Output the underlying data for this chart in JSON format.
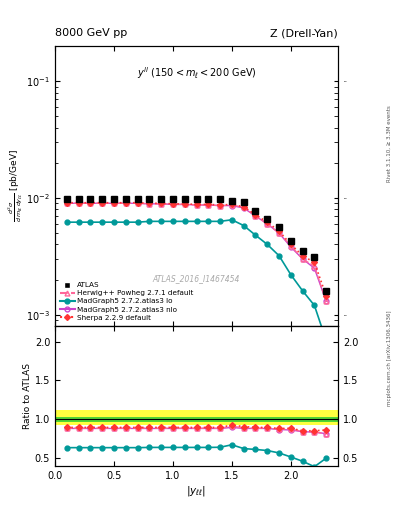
{
  "title_left": "8000 GeV pp",
  "title_right": "Z (Drell-Yan)",
  "annotation": "y^{ll} (150 < m_{l} < 200 GeV)",
  "watermark": "ATLAS_2016_I1467454",
  "rivet_label": "Rivet 3.1.10, ≥ 3.3M events",
  "mcplots_label": "mcplots.cern.ch [arXiv:1306.3436]",
  "ylabel_ratio": "Ratio to ATLAS",
  "xlabel": "|y_{\\ell\\ell}|",
  "xlim": [
    0.0,
    2.4
  ],
  "ylim_main": [
    0.0008,
    0.2
  ],
  "ylim_ratio": [
    0.4,
    2.2
  ],
  "x_atlas": [
    0.1,
    0.2,
    0.3,
    0.4,
    0.5,
    0.6,
    0.7,
    0.8,
    0.9,
    1.0,
    1.1,
    1.2,
    1.3,
    1.4,
    1.5,
    1.6,
    1.7,
    1.8,
    1.9,
    2.0,
    2.1,
    2.2,
    2.3
  ],
  "y_atlas": [
    0.0098,
    0.0098,
    0.0098,
    0.0098,
    0.0098,
    0.0098,
    0.0098,
    0.0098,
    0.0098,
    0.0098,
    0.0098,
    0.0098,
    0.0098,
    0.0098,
    0.0095,
    0.0092,
    0.0078,
    0.0066,
    0.0056,
    0.0043,
    0.0035,
    0.0031,
    0.0016
  ],
  "x_mc": [
    0.1,
    0.2,
    0.3,
    0.4,
    0.5,
    0.6,
    0.7,
    0.8,
    0.9,
    1.0,
    1.1,
    1.2,
    1.3,
    1.4,
    1.5,
    1.6,
    1.7,
    1.8,
    1.9,
    2.0,
    2.1,
    2.2,
    2.3
  ],
  "y_herwig": [
    0.009,
    0.009,
    0.009,
    0.009,
    0.009,
    0.009,
    0.009,
    0.0089,
    0.0089,
    0.0088,
    0.0088,
    0.0087,
    0.0087,
    0.0086,
    0.0087,
    0.0083,
    0.007,
    0.006,
    0.005,
    0.0039,
    0.003,
    0.0026,
    0.0013
  ],
  "y_mg5lo": [
    0.0062,
    0.0062,
    0.0062,
    0.0062,
    0.0062,
    0.0062,
    0.0062,
    0.0063,
    0.0063,
    0.0063,
    0.0063,
    0.0063,
    0.0063,
    0.0063,
    0.0065,
    0.0058,
    0.0048,
    0.004,
    0.0032,
    0.0022,
    0.0016,
    0.0012,
    0.0006
  ],
  "y_mg5nlo": [
    0.009,
    0.009,
    0.009,
    0.009,
    0.009,
    0.009,
    0.009,
    0.0089,
    0.0089,
    0.0088,
    0.0088,
    0.0087,
    0.0087,
    0.0086,
    0.0086,
    0.0082,
    0.007,
    0.006,
    0.005,
    0.0038,
    0.003,
    0.0025,
    0.0013
  ],
  "y_sherpa": [
    0.0091,
    0.0091,
    0.0091,
    0.0091,
    0.0091,
    0.0091,
    0.0091,
    0.009,
    0.009,
    0.0089,
    0.0089,
    0.0088,
    0.0088,
    0.0087,
    0.0088,
    0.0084,
    0.0072,
    0.0062,
    0.0052,
    0.004,
    0.0032,
    0.0028,
    0.00145
  ],
  "color_atlas": "#000000",
  "color_herwig": "#ff6699",
  "color_mg5lo": "#009999",
  "color_mg5nlo": "#cc44cc",
  "color_sherpa": "#ff3333",
  "band_yellow": [
    0.93,
    1.12
  ],
  "band_green": [
    0.97,
    1.03
  ],
  "ratio_herwig": [
    0.885,
    0.885,
    0.885,
    0.885,
    0.885,
    0.885,
    0.885,
    0.885,
    0.885,
    0.885,
    0.885,
    0.885,
    0.885,
    0.885,
    0.91,
    0.89,
    0.885,
    0.885,
    0.873,
    0.875,
    0.842,
    0.835,
    0.815
  ],
  "ratio_mg5lo": [
    0.635,
    0.635,
    0.635,
    0.635,
    0.635,
    0.635,
    0.635,
    0.638,
    0.638,
    0.638,
    0.638,
    0.638,
    0.638,
    0.64,
    0.672,
    0.623,
    0.612,
    0.598,
    0.567,
    0.515,
    0.46,
    0.39,
    0.5
  ],
  "ratio_mg5nlo": [
    0.882,
    0.882,
    0.882,
    0.882,
    0.882,
    0.882,
    0.882,
    0.882,
    0.882,
    0.882,
    0.882,
    0.882,
    0.882,
    0.882,
    0.895,
    0.882,
    0.882,
    0.882,
    0.868,
    0.862,
    0.84,
    0.835,
    0.815
  ],
  "ratio_sherpa": [
    0.895,
    0.895,
    0.895,
    0.895,
    0.895,
    0.895,
    0.895,
    0.895,
    0.895,
    0.895,
    0.895,
    0.895,
    0.895,
    0.895,
    0.925,
    0.906,
    0.895,
    0.895,
    0.882,
    0.883,
    0.852,
    0.852,
    0.862
  ]
}
